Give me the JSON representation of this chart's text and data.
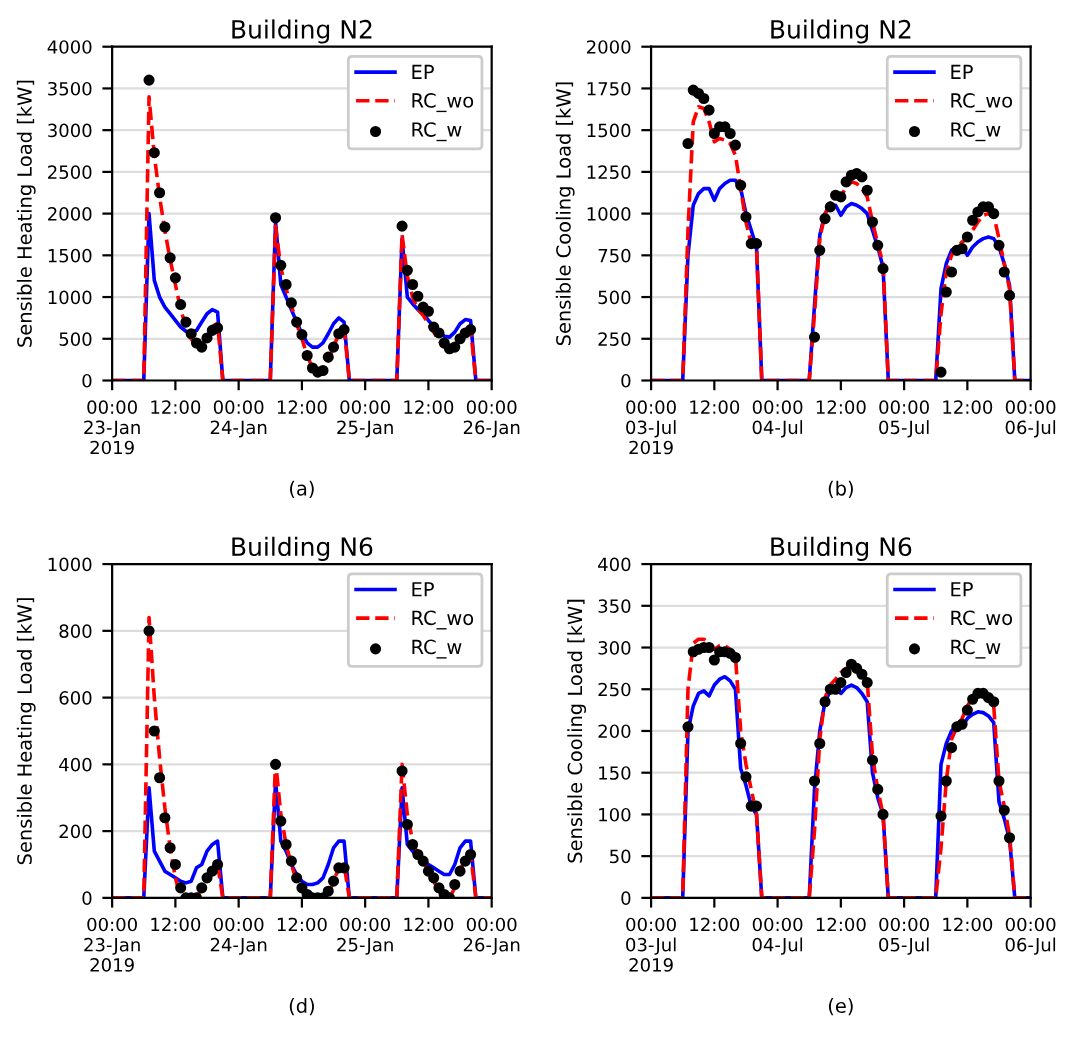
{
  "chart_data": [
    {
      "type": "line",
      "title": "Building N2",
      "ylabel": "Sensible Heating Load [kW]",
      "annotations": [
        "(a)"
      ],
      "x": [
        "2019-01-23T00:00",
        "2019-01-23T06:00",
        "2019-01-23T07:00",
        "2019-01-23T08:00",
        "2019-01-23T09:00",
        "2019-01-23T10:00",
        "2019-01-23T11:00",
        "2019-01-23T12:00",
        "2019-01-23T13:00",
        "2019-01-23T14:00",
        "2019-01-23T15:00",
        "2019-01-23T16:00",
        "2019-01-23T17:00",
        "2019-01-23T18:00",
        "2019-01-23T19:00",
        "2019-01-23T20:00",
        "2019-01-23T21:00",
        "2019-01-24T06:00",
        "2019-01-24T07:00",
        "2019-01-24T08:00",
        "2019-01-24T09:00",
        "2019-01-24T10:00",
        "2019-01-24T11:00",
        "2019-01-24T12:00",
        "2019-01-24T13:00",
        "2019-01-24T14:00",
        "2019-01-24T15:00",
        "2019-01-24T16:00",
        "2019-01-24T17:00",
        "2019-01-24T18:00",
        "2019-01-24T19:00",
        "2019-01-24T20:00",
        "2019-01-24T21:00",
        "2019-01-25T06:00",
        "2019-01-25T07:00",
        "2019-01-25T08:00",
        "2019-01-25T09:00",
        "2019-01-25T10:00",
        "2019-01-25T11:00",
        "2019-01-25T12:00",
        "2019-01-25T13:00",
        "2019-01-25T14:00",
        "2019-01-25T15:00",
        "2019-01-25T16:00",
        "2019-01-25T17:00",
        "2019-01-25T18:00",
        "2019-01-25T19:00",
        "2019-01-25T20:00",
        "2019-01-25T21:00",
        "2019-01-26T00:00"
      ],
      "xlim": [
        "2019-01-23T00:00",
        "2019-01-26T00:00"
      ],
      "xticks": [
        {
          "value": "2019-01-23T00:00",
          "label": "00:00\n23-Jan\n2019"
        },
        {
          "value": "2019-01-23T12:00",
          "label": "12:00"
        },
        {
          "value": "2019-01-24T00:00",
          "label": "00:00\n24-Jan"
        },
        {
          "value": "2019-01-24T12:00",
          "label": "12:00"
        },
        {
          "value": "2019-01-25T00:00",
          "label": "00:00\n25-Jan"
        },
        {
          "value": "2019-01-25T12:00",
          "label": "12:00"
        },
        {
          "value": "2019-01-26T00:00",
          "label": "00:00\n26-Jan"
        }
      ],
      "ylim": [
        0,
        4000
      ],
      "yticks": [
        0,
        500,
        1000,
        1500,
        2000,
        2500,
        3000,
        3500,
        4000
      ],
      "grid": "y",
      "legend": "top right",
      "series": [
        {
          "name": "EP",
          "color": "#0000ff",
          "line_style": "solid",
          "values": [
            0,
            0,
            2000,
            1200,
            1000,
            880,
            800,
            720,
            640,
            590,
            570,
            600,
            700,
            800,
            850,
            820,
            0,
            0,
            1900,
            1150,
            1000,
            850,
            700,
            560,
            450,
            400,
            400,
            450,
            560,
            680,
            750,
            700,
            0,
            0,
            1700,
            1000,
            920,
            850,
            800,
            720,
            650,
            580,
            530,
            520,
            580,
            680,
            730,
            720,
            0,
            0
          ]
        },
        {
          "name": "RC_wo",
          "color": "#ff0000",
          "line_style": "dashed",
          "values": [
            0,
            0,
            3400,
            2700,
            2200,
            1800,
            1450,
            1150,
            850,
            650,
            500,
            400,
            430,
            550,
            650,
            680,
            0,
            0,
            1850,
            1350,
            1100,
            900,
            680,
            500,
            300,
            150,
            90,
            110,
            250,
            400,
            560,
            640,
            0,
            0,
            1750,
            1250,
            1000,
            850,
            780,
            680,
            580,
            480,
            400,
            370,
            420,
            500,
            580,
            620,
            0,
            0
          ]
        },
        {
          "name": "RC_w",
          "color": "#000000",
          "type": "scatter",
          "marker": "circle",
          "x": [
            "2019-01-23T07:00",
            "2019-01-23T08:00",
            "2019-01-23T09:00",
            "2019-01-23T10:00",
            "2019-01-23T11:00",
            "2019-01-23T12:00",
            "2019-01-23T13:00",
            "2019-01-23T14:00",
            "2019-01-23T15:00",
            "2019-01-23T16:00",
            "2019-01-23T17:00",
            "2019-01-23T18:00",
            "2019-01-23T19:00",
            "2019-01-23T20:00",
            "2019-01-24T07:00",
            "2019-01-24T08:00",
            "2019-01-24T09:00",
            "2019-01-24T10:00",
            "2019-01-24T11:00",
            "2019-01-24T12:00",
            "2019-01-24T13:00",
            "2019-01-24T14:00",
            "2019-01-24T15:00",
            "2019-01-24T16:00",
            "2019-01-24T17:00",
            "2019-01-24T18:00",
            "2019-01-24T19:00",
            "2019-01-24T20:00",
            "2019-01-25T07:00",
            "2019-01-25T08:00",
            "2019-01-25T09:00",
            "2019-01-25T10:00",
            "2019-01-25T11:00",
            "2019-01-25T12:00",
            "2019-01-25T13:00",
            "2019-01-25T14:00",
            "2019-01-25T15:00",
            "2019-01-25T16:00",
            "2019-01-25T17:00",
            "2019-01-25T18:00",
            "2019-01-25T19:00",
            "2019-01-25T20:00"
          ],
          "values": [
            3600,
            2730,
            2250,
            1840,
            1470,
            1230,
            910,
            700,
            560,
            450,
            400,
            510,
            600,
            630,
            1950,
            1380,
            1150,
            930,
            700,
            550,
            300,
            150,
            100,
            120,
            280,
            400,
            560,
            610,
            1850,
            1320,
            1150,
            1010,
            880,
            830,
            640,
            570,
            450,
            380,
            400,
            500,
            570,
            610
          ]
        }
      ]
    },
    {
      "type": "line",
      "title": "Building N2",
      "ylabel": "Sensible Cooling Load [kW]",
      "annotations": [
        "(b)"
      ],
      "x": [
        "2019-07-03T00:00",
        "2019-07-03T06:00",
        "2019-07-03T07:00",
        "2019-07-03T08:00",
        "2019-07-03T09:00",
        "2019-07-03T10:00",
        "2019-07-03T11:00",
        "2019-07-03T12:00",
        "2019-07-03T13:00",
        "2019-07-03T14:00",
        "2019-07-03T15:00",
        "2019-07-03T16:00",
        "2019-07-03T17:00",
        "2019-07-03T18:00",
        "2019-07-03T19:00",
        "2019-07-03T20:00",
        "2019-07-03T21:00",
        "2019-07-04T06:00",
        "2019-07-04T07:00",
        "2019-07-04T08:00",
        "2019-07-04T09:00",
        "2019-07-04T10:00",
        "2019-07-04T11:00",
        "2019-07-04T12:00",
        "2019-07-04T13:00",
        "2019-07-04T14:00",
        "2019-07-04T15:00",
        "2019-07-04T16:00",
        "2019-07-04T17:00",
        "2019-07-04T18:00",
        "2019-07-04T19:00",
        "2019-07-04T20:00",
        "2019-07-04T21:00",
        "2019-07-05T06:00",
        "2019-07-05T07:00",
        "2019-07-05T08:00",
        "2019-07-05T09:00",
        "2019-07-05T10:00",
        "2019-07-05T11:00",
        "2019-07-05T12:00",
        "2019-07-05T13:00",
        "2019-07-05T14:00",
        "2019-07-05T15:00",
        "2019-07-05T16:00",
        "2019-07-05T17:00",
        "2019-07-05T18:00",
        "2019-07-05T19:00",
        "2019-07-05T20:00",
        "2019-07-05T21:00",
        "2019-07-06T00:00"
      ],
      "xlim": [
        "2019-07-03T00:00",
        "2019-07-06T00:00"
      ],
      "xticks": [
        {
          "value": "2019-07-03T00:00",
          "label": "00:00\n03-Jul\n2019"
        },
        {
          "value": "2019-07-03T12:00",
          "label": "12:00"
        },
        {
          "value": "2019-07-04T00:00",
          "label": "00:00\n04-Jul"
        },
        {
          "value": "2019-07-04T12:00",
          "label": "12:00"
        },
        {
          "value": "2019-07-05T00:00",
          "label": "00:00\n05-Jul"
        },
        {
          "value": "2019-07-05T12:00",
          "label": "12:00"
        },
        {
          "value": "2019-07-06T00:00",
          "label": "00:00\n06-Jul"
        }
      ],
      "ylim": [
        0,
        2000
      ],
      "yticks": [
        0,
        250,
        500,
        750,
        1000,
        1250,
        1500,
        1750,
        2000
      ],
      "grid": "y",
      "legend": "top right",
      "series": [
        {
          "name": "EP",
          "color": "#0000ff",
          "line_style": "solid",
          "values": [
            0,
            0,
            750,
            1050,
            1120,
            1150,
            1150,
            1080,
            1150,
            1180,
            1200,
            1200,
            1150,
            1000,
            900,
            800,
            0,
            0,
            450,
            870,
            1000,
            1050,
            1050,
            990,
            1040,
            1060,
            1050,
            1030,
            1000,
            900,
            800,
            680,
            0,
            0,
            550,
            700,
            780,
            800,
            800,
            750,
            800,
            830,
            850,
            860,
            850,
            800,
            700,
            570,
            0,
            0
          ]
        },
        {
          "name": "RC_wo",
          "color": "#ff0000",
          "line_style": "dashed",
          "values": [
            0,
            0,
            900,
            1550,
            1640,
            1630,
            1550,
            1430,
            1450,
            1440,
            1420,
            1350,
            1150,
            950,
            820,
            800,
            0,
            0,
            400,
            850,
            1000,
            1060,
            1100,
            1100,
            1160,
            1190,
            1180,
            1150,
            1100,
            950,
            820,
            700,
            0,
            0,
            400,
            650,
            750,
            800,
            830,
            850,
            900,
            950,
            990,
            1000,
            990,
            850,
            700,
            550,
            0,
            0
          ]
        },
        {
          "name": "RC_w",
          "color": "#000000",
          "type": "scatter",
          "marker": "circle",
          "x": [
            "2019-07-03T07:00",
            "2019-07-03T08:00",
            "2019-07-03T09:00",
            "2019-07-03T10:00",
            "2019-07-03T11:00",
            "2019-07-03T12:00",
            "2019-07-03T13:00",
            "2019-07-03T14:00",
            "2019-07-03T15:00",
            "2019-07-03T16:00",
            "2019-07-03T17:00",
            "2019-07-03T18:00",
            "2019-07-03T19:00",
            "2019-07-03T20:00",
            "2019-07-04T07:00",
            "2019-07-04T08:00",
            "2019-07-04T09:00",
            "2019-07-04T10:00",
            "2019-07-04T11:00",
            "2019-07-04T12:00",
            "2019-07-04T13:00",
            "2019-07-04T14:00",
            "2019-07-04T15:00",
            "2019-07-04T16:00",
            "2019-07-04T17:00",
            "2019-07-04T18:00",
            "2019-07-04T19:00",
            "2019-07-04T20:00",
            "2019-07-05T07:00",
            "2019-07-05T08:00",
            "2019-07-05T09:00",
            "2019-07-05T10:00",
            "2019-07-05T11:00",
            "2019-07-05T12:00",
            "2019-07-05T13:00",
            "2019-07-05T14:00",
            "2019-07-05T15:00",
            "2019-07-05T16:00",
            "2019-07-05T17:00",
            "2019-07-05T18:00",
            "2019-07-05T19:00",
            "2019-07-05T20:00"
          ],
          "values": [
            1420,
            1740,
            1720,
            1690,
            1620,
            1480,
            1520,
            1520,
            1480,
            1410,
            1170,
            980,
            820,
            820,
            260,
            780,
            970,
            1040,
            1110,
            1100,
            1190,
            1230,
            1240,
            1220,
            1140,
            950,
            810,
            670,
            50,
            530,
            650,
            780,
            790,
            860,
            960,
            1010,
            1040,
            1040,
            1000,
            810,
            650,
            510
          ]
        }
      ]
    },
    {
      "type": "line",
      "title": "Building N6",
      "ylabel": "Sensible Heating Load [kW]",
      "annotations": [
        "(d)"
      ],
      "x": [
        "2019-01-23T00:00",
        "2019-01-23T06:00",
        "2019-01-23T07:00",
        "2019-01-23T08:00",
        "2019-01-23T09:00",
        "2019-01-23T10:00",
        "2019-01-23T11:00",
        "2019-01-23T12:00",
        "2019-01-23T13:00",
        "2019-01-23T14:00",
        "2019-01-23T15:00",
        "2019-01-23T16:00",
        "2019-01-23T17:00",
        "2019-01-23T18:00",
        "2019-01-23T19:00",
        "2019-01-23T20:00",
        "2019-01-23T21:00",
        "2019-01-24T06:00",
        "2019-01-24T07:00",
        "2019-01-24T08:00",
        "2019-01-24T09:00",
        "2019-01-24T10:00",
        "2019-01-24T11:00",
        "2019-01-24T12:00",
        "2019-01-24T13:00",
        "2019-01-24T14:00",
        "2019-01-24T15:00",
        "2019-01-24T16:00",
        "2019-01-24T17:00",
        "2019-01-24T18:00",
        "2019-01-24T19:00",
        "2019-01-24T20:00",
        "2019-01-24T21:00",
        "2019-01-25T06:00",
        "2019-01-25T07:00",
        "2019-01-25T08:00",
        "2019-01-25T09:00",
        "2019-01-25T10:00",
        "2019-01-25T11:00",
        "2019-01-25T12:00",
        "2019-01-25T13:00",
        "2019-01-25T14:00",
        "2019-01-25T15:00",
        "2019-01-25T16:00",
        "2019-01-25T17:00",
        "2019-01-25T18:00",
        "2019-01-25T19:00",
        "2019-01-25T20:00",
        "2019-01-25T21:00",
        "2019-01-26T00:00"
      ],
      "xlim": [
        "2019-01-23T00:00",
        "2019-01-26T00:00"
      ],
      "xticks": [
        {
          "value": "2019-01-23T00:00",
          "label": "00:00\n23-Jan\n2019"
        },
        {
          "value": "2019-01-23T12:00",
          "label": "12:00"
        },
        {
          "value": "2019-01-24T00:00",
          "label": "00:00\n24-Jan"
        },
        {
          "value": "2019-01-24T12:00",
          "label": "12:00"
        },
        {
          "value": "2019-01-25T00:00",
          "label": "00:00\n25-Jan"
        },
        {
          "value": "2019-01-25T12:00",
          "label": "12:00"
        },
        {
          "value": "2019-01-26T00:00",
          "label": "00:00\n26-Jan"
        }
      ],
      "ylim": [
        0,
        1000
      ],
      "yticks": [
        0,
        200,
        400,
        600,
        800,
        1000
      ],
      "grid": "y",
      "legend": "top right",
      "series": [
        {
          "name": "EP",
          "color": "#0000ff",
          "line_style": "solid",
          "values": [
            0,
            0,
            330,
            140,
            110,
            80,
            70,
            60,
            50,
            45,
            50,
            90,
            100,
            140,
            160,
            170,
            0,
            0,
            350,
            170,
            140,
            100,
            70,
            50,
            40,
            40,
            45,
            60,
            100,
            150,
            170,
            170,
            0,
            0,
            330,
            160,
            140,
            120,
            110,
            100,
            90,
            80,
            70,
            70,
            100,
            150,
            170,
            170,
            0,
            0
          ]
        },
        {
          "name": "RC_wo",
          "color": "#ff0000",
          "line_style": "dashed",
          "values": [
            0,
            0,
            840,
            600,
            420,
            270,
            150,
            60,
            0,
            0,
            0,
            0,
            30,
            60,
            80,
            100,
            0,
            0,
            410,
            250,
            160,
            100,
            50,
            20,
            0,
            0,
            0,
            0,
            10,
            50,
            90,
            100,
            0,
            0,
            400,
            250,
            170,
            130,
            110,
            80,
            50,
            20,
            0,
            0,
            30,
            80,
            120,
            130,
            0,
            0
          ]
        },
        {
          "name": "RC_w",
          "color": "#000000",
          "type": "scatter",
          "marker": "circle",
          "x": [
            "2019-01-23T07:00",
            "2019-01-23T08:00",
            "2019-01-23T09:00",
            "2019-01-23T10:00",
            "2019-01-23T11:00",
            "2019-01-23T12:00",
            "2019-01-23T13:00",
            "2019-01-23T14:00",
            "2019-01-23T15:00",
            "2019-01-23T16:00",
            "2019-01-23T17:00",
            "2019-01-23T18:00",
            "2019-01-23T19:00",
            "2019-01-23T20:00",
            "2019-01-24T07:00",
            "2019-01-24T08:00",
            "2019-01-24T09:00",
            "2019-01-24T10:00",
            "2019-01-24T11:00",
            "2019-01-24T12:00",
            "2019-01-24T13:00",
            "2019-01-24T14:00",
            "2019-01-24T15:00",
            "2019-01-24T16:00",
            "2019-01-24T17:00",
            "2019-01-24T18:00",
            "2019-01-24T19:00",
            "2019-01-24T20:00",
            "2019-01-25T07:00",
            "2019-01-25T08:00",
            "2019-01-25T09:00",
            "2019-01-25T10:00",
            "2019-01-25T11:00",
            "2019-01-25T12:00",
            "2019-01-25T13:00",
            "2019-01-25T14:00",
            "2019-01-25T15:00",
            "2019-01-25T16:00",
            "2019-01-25T17:00",
            "2019-01-25T18:00",
            "2019-01-25T19:00",
            "2019-01-25T20:00"
          ],
          "values": [
            800,
            500,
            360,
            240,
            150,
            100,
            30,
            0,
            0,
            0,
            30,
            60,
            80,
            100,
            400,
            230,
            160,
            110,
            60,
            30,
            10,
            0,
            0,
            0,
            20,
            50,
            90,
            90,
            380,
            220,
            160,
            130,
            110,
            80,
            60,
            30,
            10,
            0,
            40,
            80,
            110,
            130
          ]
        }
      ]
    },
    {
      "type": "line",
      "title": "Building N6",
      "ylabel": "Sensible Cooling Load [kW]",
      "annotations": [
        "(e)"
      ],
      "x": [
        "2019-07-03T00:00",
        "2019-07-03T06:00",
        "2019-07-03T07:00",
        "2019-07-03T08:00",
        "2019-07-03T09:00",
        "2019-07-03T10:00",
        "2019-07-03T11:00",
        "2019-07-03T12:00",
        "2019-07-03T13:00",
        "2019-07-03T14:00",
        "2019-07-03T15:00",
        "2019-07-03T16:00",
        "2019-07-03T17:00",
        "2019-07-03T18:00",
        "2019-07-03T19:00",
        "2019-07-03T20:00",
        "2019-07-03T21:00",
        "2019-07-04T06:00",
        "2019-07-04T07:00",
        "2019-07-04T08:00",
        "2019-07-04T09:00",
        "2019-07-04T10:00",
        "2019-07-04T11:00",
        "2019-07-04T12:00",
        "2019-07-04T13:00",
        "2019-07-04T14:00",
        "2019-07-04T15:00",
        "2019-07-04T16:00",
        "2019-07-04T17:00",
        "2019-07-04T18:00",
        "2019-07-04T19:00",
        "2019-07-04T20:00",
        "2019-07-04T21:00",
        "2019-07-05T06:00",
        "2019-07-05T07:00",
        "2019-07-05T08:00",
        "2019-07-05T09:00",
        "2019-07-05T10:00",
        "2019-07-05T11:00",
        "2019-07-05T12:00",
        "2019-07-05T13:00",
        "2019-07-05T14:00",
        "2019-07-05T15:00",
        "2019-07-05T16:00",
        "2019-07-05T17:00",
        "2019-07-05T18:00",
        "2019-07-05T19:00",
        "2019-07-05T20:00",
        "2019-07-05T21:00",
        "2019-07-06T00:00"
      ],
      "xlim": [
        "2019-07-03T00:00",
        "2019-07-06T00:00"
      ],
      "xticks": [
        {
          "value": "2019-07-03T00:00",
          "label": "00:00\n03-Jul\n2019"
        },
        {
          "value": "2019-07-03T12:00",
          "label": "12:00"
        },
        {
          "value": "2019-07-04T00:00",
          "label": "00:00\n04-Jul"
        },
        {
          "value": "2019-07-04T12:00",
          "label": "12:00"
        },
        {
          "value": "2019-07-05T00:00",
          "label": "00:00\n05-Jul"
        },
        {
          "value": "2019-07-05T12:00",
          "label": "12:00"
        },
        {
          "value": "2019-07-06T00:00",
          "label": "00:00\n06-Jul"
        }
      ],
      "ylim": [
        0,
        400
      ],
      "yticks": [
        0,
        50,
        100,
        150,
        200,
        250,
        300,
        350,
        400
      ],
      "grid": "y",
      "legend": "top right",
      "series": [
        {
          "name": "EP",
          "color": "#0000ff",
          "line_style": "solid",
          "values": [
            0,
            0,
            200,
            230,
            245,
            248,
            242,
            255,
            262,
            265,
            260,
            250,
            155,
            135,
            110,
            100,
            0,
            0,
            130,
            200,
            235,
            248,
            250,
            245,
            252,
            255,
            252,
            245,
            235,
            150,
            120,
            100,
            0,
            0,
            160,
            185,
            200,
            207,
            205,
            215,
            220,
            223,
            222,
            218,
            210,
            115,
            95,
            70,
            0,
            0
          ]
        },
        {
          "name": "RC_wo",
          "color": "#ff0000",
          "line_style": "dashed",
          "values": [
            0,
            0,
            250,
            305,
            310,
            310,
            305,
            298,
            302,
            302,
            298,
            290,
            200,
            160,
            130,
            100,
            0,
            0,
            80,
            190,
            240,
            255,
            262,
            270,
            275,
            278,
            275,
            270,
            260,
            170,
            130,
            100,
            0,
            0,
            60,
            140,
            190,
            205,
            215,
            230,
            240,
            245,
            245,
            240,
            230,
            140,
            110,
            75,
            0,
            0
          ]
        },
        {
          "name": "RC_w",
          "color": "#000000",
          "type": "scatter",
          "marker": "circle",
          "x": [
            "2019-07-03T07:00",
            "2019-07-03T08:00",
            "2019-07-03T09:00",
            "2019-07-03T10:00",
            "2019-07-03T11:00",
            "2019-07-03T12:00",
            "2019-07-03T13:00",
            "2019-07-03T14:00",
            "2019-07-03T15:00",
            "2019-07-03T16:00",
            "2019-07-03T17:00",
            "2019-07-03T18:00",
            "2019-07-03T19:00",
            "2019-07-03T20:00",
            "2019-07-04T07:00",
            "2019-07-04T08:00",
            "2019-07-04T09:00",
            "2019-07-04T10:00",
            "2019-07-04T11:00",
            "2019-07-04T12:00",
            "2019-07-04T13:00",
            "2019-07-04T14:00",
            "2019-07-04T15:00",
            "2019-07-04T16:00",
            "2019-07-04T17:00",
            "2019-07-04T18:00",
            "2019-07-04T19:00",
            "2019-07-04T20:00",
            "2019-07-05T07:00",
            "2019-07-05T08:00",
            "2019-07-05T09:00",
            "2019-07-05T10:00",
            "2019-07-05T11:00",
            "2019-07-05T12:00",
            "2019-07-05T13:00",
            "2019-07-05T14:00",
            "2019-07-05T15:00",
            "2019-07-05T16:00",
            "2019-07-05T17:00",
            "2019-07-05T18:00",
            "2019-07-05T19:00",
            "2019-07-05T20:00"
          ],
          "values": [
            205,
            295,
            298,
            300,
            300,
            285,
            295,
            295,
            293,
            288,
            185,
            145,
            110,
            110,
            140,
            185,
            235,
            250,
            250,
            258,
            270,
            280,
            275,
            268,
            258,
            165,
            130,
            100,
            98,
            140,
            180,
            205,
            208,
            225,
            238,
            245,
            245,
            240,
            235,
            140,
            105,
            72
          ]
        }
      ]
    }
  ]
}
